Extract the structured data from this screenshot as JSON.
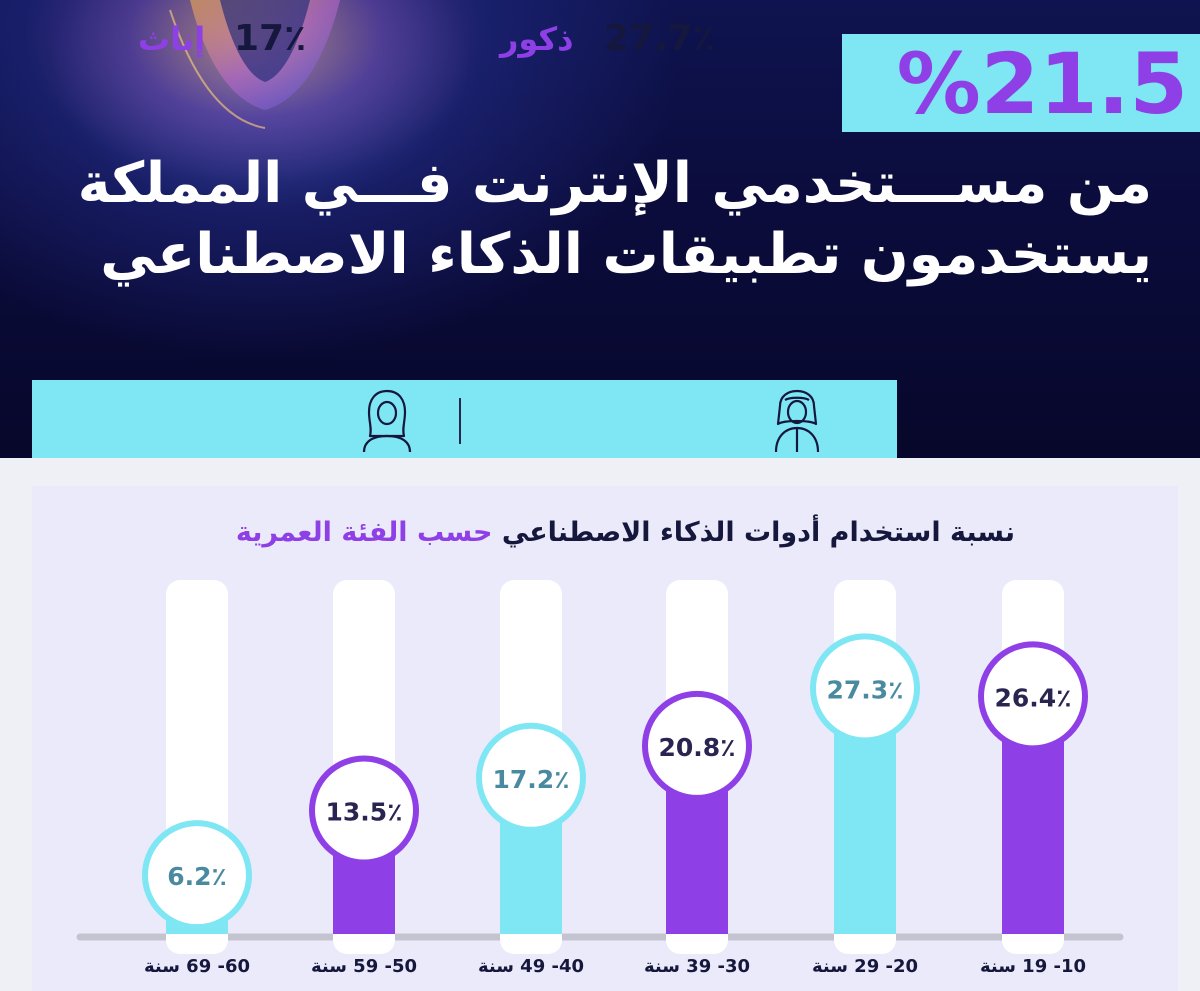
{
  "header": {
    "big_stat": "%21.5",
    "headline_line1": "من مســـتخدمي الإنترنت فـــي المملكة",
    "headline_line2": "يستخدمون تطبيقات الذكاء الاصطناعي"
  },
  "gender": {
    "males_value": "27.7٪",
    "males_label": "ذكور",
    "females_value": "17٪",
    "females_label": "إناث",
    "male_icon": "man-shemagh-icon",
    "female_icon": "woman-hijab-icon"
  },
  "chart_data": {
    "type": "bar",
    "title_part1": "نسبة استخدام أدوات الذكاء الاصطناعي",
    "title_part2": "حسب الفئة العمرية",
    "categories": [
      "10- 19 سنة",
      "20- 29 سنة",
      "30- 39 سنة",
      "40- 49 سنة",
      "50- 59 سنة",
      "60- 69 سنة"
    ],
    "values": [
      26.4,
      27.3,
      20.8,
      17.2,
      13.5,
      6.2
    ],
    "value_labels": [
      "26.4٪",
      "27.3٪",
      "20.8٪",
      "17.2٪",
      "13.5٪",
      "6.2٪"
    ],
    "ylim": [
      0,
      40
    ],
    "bar_colors": [
      "#8f3fe6",
      "#7fe6f4",
      "#8f3fe6",
      "#7fe6f4",
      "#8f3fe6",
      "#7fe6f4"
    ],
    "track_color": "#ffffff",
    "baseline_color": "#c4c4d0"
  },
  "colors": {
    "purple": "#8f3fe6",
    "cyan": "#7fe6f4",
    "navy": "#0b0c3c",
    "text_dark": "#15173d"
  }
}
